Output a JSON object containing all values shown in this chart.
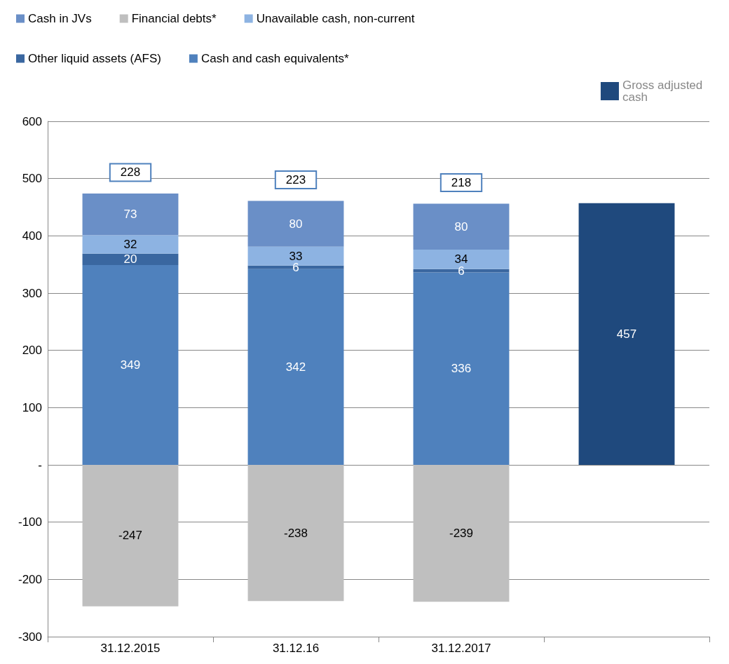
{
  "chart_data": {
    "type": "bar",
    "stacked": true,
    "categories": [
      "31.12.2015",
      "31.12.16",
      "31.12.2017",
      null
    ],
    "series": [
      {
        "name": "Cash and cash equivalents*",
        "color": "#4f81bd",
        "values": [
          349,
          342,
          336,
          null
        ]
      },
      {
        "name": "Other liquid assets (AFS)",
        "color": "#3a67a0",
        "values": [
          20,
          6,
          6,
          null
        ]
      },
      {
        "name": "Unavailable cash, non-current",
        "color": "#8db3e2",
        "values": [
          32,
          33,
          34,
          null
        ]
      },
      {
        "name": "Financial debts*",
        "color": "#bfbfbf",
        "values": [
          -247,
          -238,
          -239,
          null
        ]
      },
      {
        "name": "Cash in JVs",
        "color": "#6a8fc7",
        "values": [
          73,
          80,
          80,
          null
        ]
      },
      {
        "name": "Gross adjusted cash",
        "color": "#1f497d",
        "values": [
          null,
          null,
          null,
          457
        ]
      }
    ],
    "annotations": [
      "228",
      "223",
      "218"
    ],
    "data_labels": true,
    "ylim": [
      -300,
      600
    ],
    "yticks": [
      -300,
      -200,
      -100,
      {
        "value": 0,
        "label": "-"
      },
      100,
      200,
      300,
      400,
      500,
      600
    ],
    "grid": "y",
    "legend": "top"
  }
}
